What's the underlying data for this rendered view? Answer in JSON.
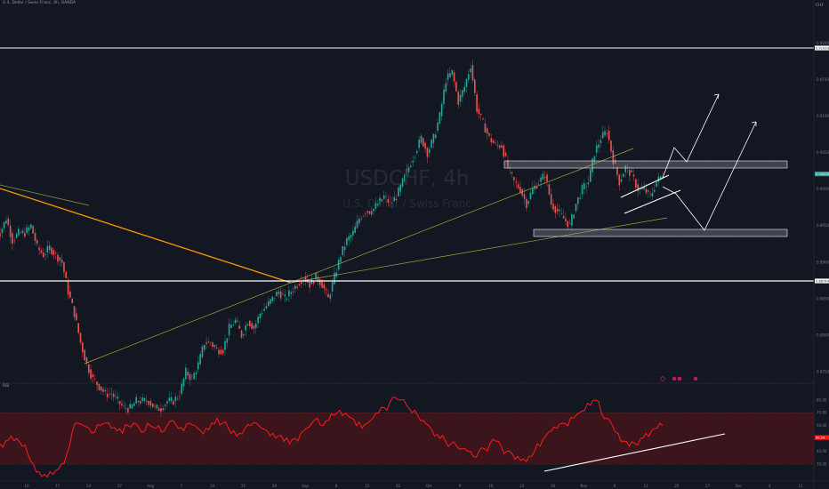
{
  "header": {
    "symbol_line": "U.S. Dollar / Swiss Franc, 4h, OANDA",
    "currency": "CHF"
  },
  "watermark": {
    "ticker": "USDCHF, 4h",
    "description": "U.S. Dollar / Swiss Franc"
  },
  "rsi_panel": {
    "label": "RSI"
  },
  "colors": {
    "background": "#131722",
    "up_candle": "#26a69a",
    "down_candle": "#ef5350",
    "rsi_line": "#ff1a1a",
    "rsi_band": "#4a1519",
    "orange_trendline": "#ff9800",
    "yellow_trendline": "#a8a23a",
    "white_lines": "#ffffff",
    "zone_fill": "#2a2e39",
    "event_marker": "#9c27b0"
  },
  "chart_data": [
    {
      "type": "candlestick",
      "title": "USDCHF, 4h",
      "x": [
        "10",
        "17",
        "24",
        "27",
        "Aug",
        "7",
        "14",
        "21",
        "28",
        "Sep",
        "8",
        "15",
        "22",
        "Oct",
        "9",
        "16",
        "23",
        "30",
        "Nov",
        "6",
        "13",
        "20",
        "27",
        "Dec",
        "4",
        "11"
      ],
      "y_ticks": [
        0.86,
        0.865,
        0.87,
        0.875,
        0.88,
        0.885,
        0.89,
        0.895,
        0.9,
        0.905,
        0.91,
        0.915,
        0.92,
        0.925
      ],
      "price_tags": [
        {
          "value": "0.91933"
        },
        {
          "value": "0.88744"
        },
        {
          "value": "0.90209"
        }
      ],
      "ohlc_close": [
        0.894,
        0.896,
        0.893,
        0.894,
        0.894,
        0.895,
        0.892,
        0.891,
        0.892,
        0.891,
        0.89,
        0.886,
        0.883,
        0.879,
        0.876,
        0.874,
        0.873,
        0.872,
        0.872,
        0.871,
        0.87,
        0.87,
        0.871,
        0.871,
        0.871,
        0.87,
        0.87,
        0.871,
        0.871,
        0.872,
        0.875,
        0.874,
        0.876,
        0.879,
        0.879,
        0.878,
        0.878,
        0.881,
        0.882,
        0.88,
        0.882,
        0.881,
        0.883,
        0.884,
        0.885,
        0.886,
        0.885,
        0.886,
        0.887,
        0.888,
        0.887,
        0.888,
        0.887,
        0.885,
        0.888,
        0.891,
        0.893,
        0.894,
        0.896,
        0.897,
        0.897,
        0.898,
        0.899,
        0.898,
        0.899,
        0.901,
        0.903,
        0.905,
        0.907,
        0.905,
        0.907,
        0.91,
        0.915,
        0.916,
        0.912,
        0.914,
        0.917,
        0.911,
        0.909,
        0.907,
        0.906,
        0.906,
        0.903,
        0.901,
        0.9,
        0.898,
        0.9,
        0.901,
        0.902,
        0.898,
        0.897,
        0.896,
        0.895,
        0.898,
        0.9,
        0.901,
        0.905,
        0.907,
        0.908,
        0.904,
        0.901,
        0.903,
        0.902,
        0.9,
        0.9,
        0.899,
        0.901,
        0.902
      ],
      "trendlines": "orange descending trendline; two yellow support lines from the late-August low; green line upper left",
      "zones": "two grey rectangles (resistance near 0.9085, support near 0.8960)"
    },
    {
      "type": "line",
      "title": "RSI",
      "y_ticks": [
        30,
        40,
        50,
        60,
        70,
        80
      ],
      "band": [
        30,
        70
      ],
      "last_value": "50.79",
      "values": [
        46,
        48,
        52,
        50,
        44,
        38,
        30,
        24,
        22,
        24,
        25,
        30,
        38,
        56,
        62,
        60,
        58,
        55,
        60,
        62,
        58,
        56,
        54,
        60,
        62,
        58,
        56,
        60,
        58,
        55,
        60,
        64,
        58,
        56,
        62,
        60,
        56,
        58,
        62,
        66,
        62,
        58,
        56,
        54,
        58,
        60,
        62,
        58,
        56,
        54,
        52,
        48,
        46,
        50,
        54,
        58,
        62,
        66,
        60,
        64,
        68,
        72,
        70,
        66,
        60,
        58,
        62,
        66,
        70,
        74,
        78,
        82,
        80,
        76,
        70,
        68,
        64,
        60,
        52,
        50,
        48,
        46,
        44,
        42,
        40,
        36,
        40,
        42,
        46,
        48,
        44,
        40,
        38,
        36,
        34,
        36,
        40,
        44,
        52,
        56,
        58,
        62,
        60,
        66,
        70,
        72,
        76,
        80,
        70,
        66,
        60,
        54,
        48,
        44,
        46,
        50,
        54,
        56,
        58,
        60
      ]
    }
  ]
}
